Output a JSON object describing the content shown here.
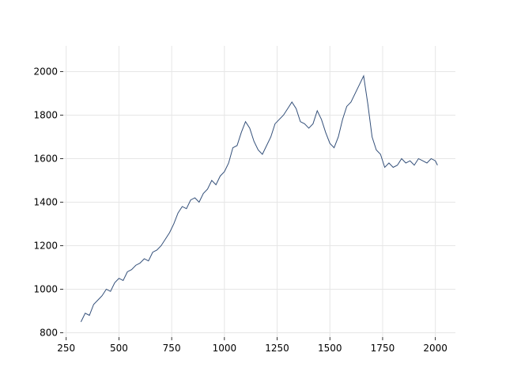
{
  "chart_data": {
    "type": "line",
    "x": [
      320,
      340,
      360,
      380,
      400,
      420,
      440,
      460,
      480,
      500,
      520,
      540,
      560,
      580,
      600,
      620,
      640,
      660,
      680,
      700,
      720,
      740,
      760,
      780,
      800,
      820,
      840,
      860,
      880,
      900,
      920,
      940,
      960,
      980,
      1000,
      1020,
      1040,
      1060,
      1080,
      1100,
      1120,
      1140,
      1160,
      1180,
      1200,
      1220,
      1240,
      1260,
      1280,
      1300,
      1320,
      1340,
      1360,
      1380,
      1400,
      1420,
      1440,
      1460,
      1480,
      1500,
      1520,
      1540,
      1560,
      1580,
      1600,
      1620,
      1640,
      1660,
      1680,
      1700,
      1720,
      1740,
      1760,
      1780,
      1800,
      1820,
      1840,
      1860,
      1880,
      1900,
      1920,
      1940,
      1960,
      1980,
      2000,
      2010
    ],
    "series": [
      {
        "color": "#34507a",
        "values": [
          850,
          890,
          880,
          930,
          950,
          970,
          1000,
          990,
          1030,
          1050,
          1040,
          1080,
          1090,
          1110,
          1120,
          1140,
          1130,
          1170,
          1180,
          1200,
          1230,
          1260,
          1300,
          1350,
          1380,
          1370,
          1410,
          1420,
          1400,
          1440,
          1460,
          1500,
          1480,
          1520,
          1540,
          1580,
          1650,
          1660,
          1720,
          1770,
          1740,
          1680,
          1640,
          1620,
          1660,
          1700,
          1760,
          1780,
          1800,
          1830,
          1860,
          1830,
          1770,
          1760,
          1740,
          1760,
          1820,
          1780,
          1720,
          1670,
          1650,
          1700,
          1780,
          1840,
          1860,
          1900,
          1940,
          1980,
          1850,
          1700,
          1640,
          1620,
          1560,
          1580,
          1560,
          1570,
          1600,
          1580,
          1590,
          1570,
          1600,
          1590,
          1580,
          1600,
          1590,
          1570
        ]
      }
    ],
    "xlim": [
      236,
      2095
    ],
    "ylim": [
      780,
      2118
    ],
    "xticks": [
      250,
      500,
      750,
      1000,
      1250,
      1500,
      1750,
      2000
    ],
    "yticks": [
      800,
      1000,
      1200,
      1400,
      1600,
      1800,
      2000
    ],
    "grid": true
  }
}
